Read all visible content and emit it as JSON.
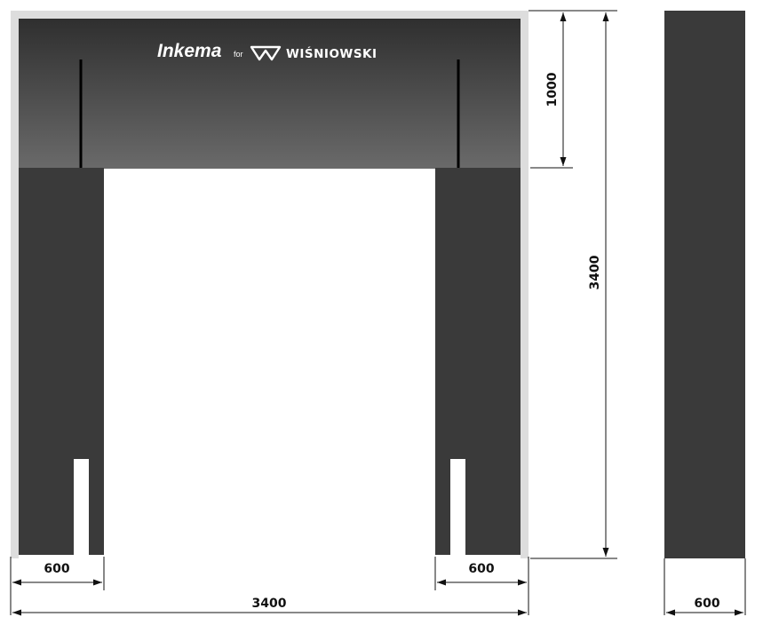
{
  "logo": {
    "brand": "Inkema",
    "connector": "for",
    "partner": "WIŚNIOWSKI",
    "partner_icon": "wisniowski-w-icon"
  },
  "dimensions": {
    "header_height": "1000",
    "total_height": "3400",
    "left_pad_width": "600",
    "right_pad_width": "600",
    "total_width": "3400",
    "side_view_width": "600"
  },
  "colors": {
    "frame": "#dddddd",
    "header_top": "#2f2f2f",
    "header_bottom": "#6a6a6a",
    "side_pad": "#3a3a3a",
    "opening": "#ffffff",
    "dimension_line": "#111111"
  }
}
